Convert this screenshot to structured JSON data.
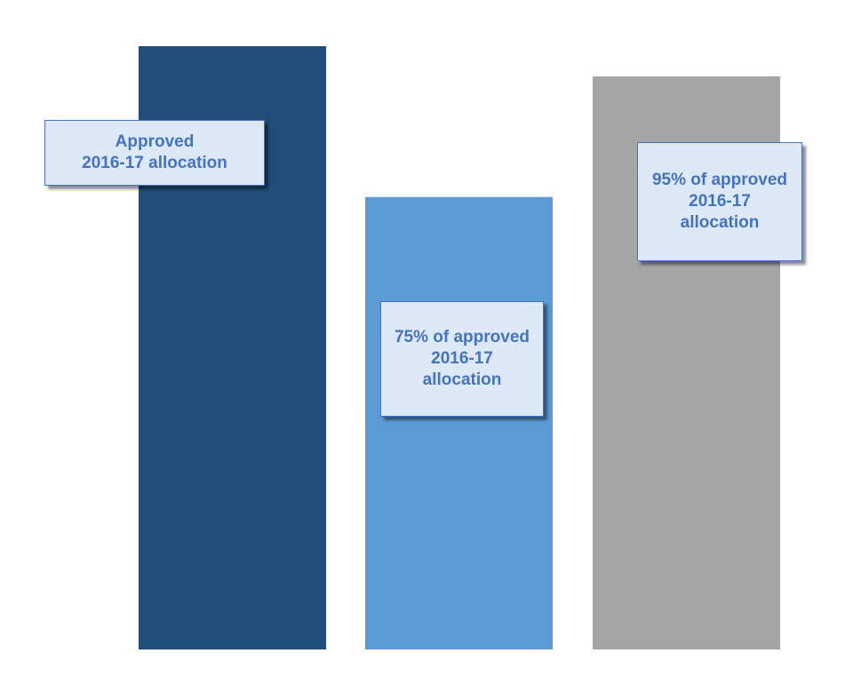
{
  "chart_data": {
    "type": "bar",
    "categories": [
      "Approved\n2016-17 allocation",
      "75% of approved\n2016-17\nallocation",
      "95% of approved\n2016-17\nallocation"
    ],
    "values": [
      100,
      75,
      95
    ],
    "ylim": [
      0,
      100
    ],
    "grid": false,
    "legend": "none",
    "colors": [
      "#1f4e79",
      "#5b9bd5",
      "#a5a5a5"
    ],
    "annotations": [
      "Approved\n2016-17 allocation",
      "75% of approved\n2016-17\nallocation",
      "95% of approved\n2016-17\nallocation"
    ],
    "callout_style": {
      "background": "#dde9f7",
      "border": "#4a72c4",
      "text_color": "#4472c4"
    }
  }
}
